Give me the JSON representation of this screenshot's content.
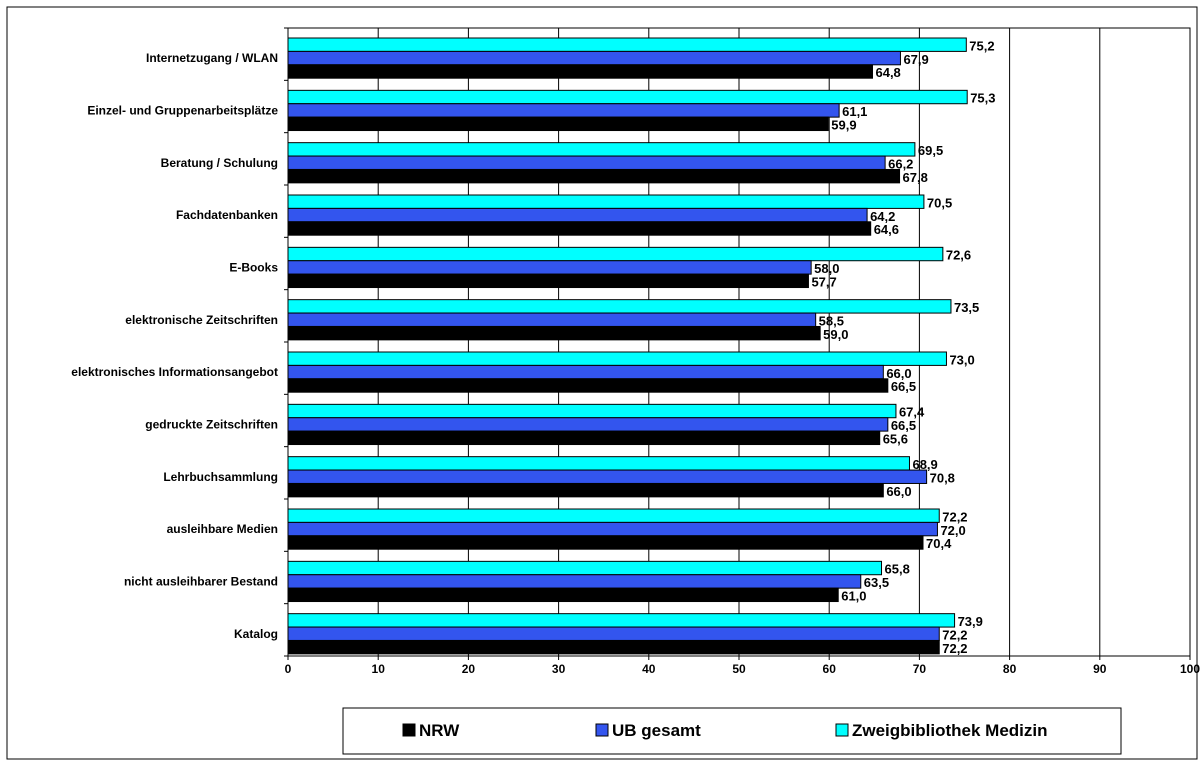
{
  "chart_data": {
    "type": "bar",
    "orientation": "horizontal",
    "categories": [
      "Internetzugang / WLAN",
      "Einzel- und Gruppenarbeitsplätze",
      "Beratung / Schulung",
      "Fachdatenbanken",
      "E-Books",
      "elektronische Zeitschriften",
      "elektronisches Informationsangebot",
      "gedruckte Zeitschriften",
      "Lehrbuchsammlung",
      "ausleihbare Medien",
      "nicht ausleihbarer Bestand",
      "Katalog"
    ],
    "series": [
      {
        "name": "Zweigbibliothek Medizin",
        "color": "#00FFFF",
        "values": [
          75.2,
          75.3,
          69.5,
          70.5,
          72.6,
          73.5,
          73.0,
          67.4,
          68.9,
          72.2,
          65.8,
          73.9
        ],
        "labels": [
          "75,2",
          "75,3",
          "69,5",
          "70,5",
          "72,6",
          "73,5",
          "73,0",
          "67,4",
          "68,9",
          "72,2",
          "65,8",
          "73,9"
        ]
      },
      {
        "name": "UB gesamt",
        "color": "#3355EE",
        "values": [
          67.9,
          61.1,
          66.2,
          64.2,
          58.0,
          58.5,
          66.0,
          66.5,
          70.8,
          72.0,
          63.5,
          72.2
        ],
        "labels": [
          "67,9",
          "61,1",
          "66,2",
          "64,2",
          "58,0",
          "58,5",
          "66,0",
          "66,5",
          "70,8",
          "72,0",
          "63,5",
          "72,2"
        ]
      },
      {
        "name": "NRW",
        "color": "#000000",
        "values": [
          64.8,
          59.9,
          67.8,
          64.6,
          57.7,
          59.0,
          66.5,
          65.6,
          66.0,
          70.4,
          61.0,
          72.2
        ],
        "labels": [
          "64,8",
          "59,9",
          "67,8",
          "64,6",
          "57,7",
          "59,0",
          "66,5",
          "65,6",
          "66,0",
          "70,4",
          "61,0",
          "72,2"
        ]
      }
    ],
    "legend_order": [
      "NRW",
      "UB gesamt",
      "Zweigbibliothek Medizin"
    ],
    "legend_position": "bottom",
    "xlim": [
      0,
      100
    ],
    "xticks": [
      "0",
      "10",
      "20",
      "30",
      "40",
      "50",
      "60",
      "70",
      "80",
      "90",
      "100"
    ],
    "grid": "vertical major lines",
    "title": "",
    "xlabel": "",
    "ylabel": ""
  }
}
